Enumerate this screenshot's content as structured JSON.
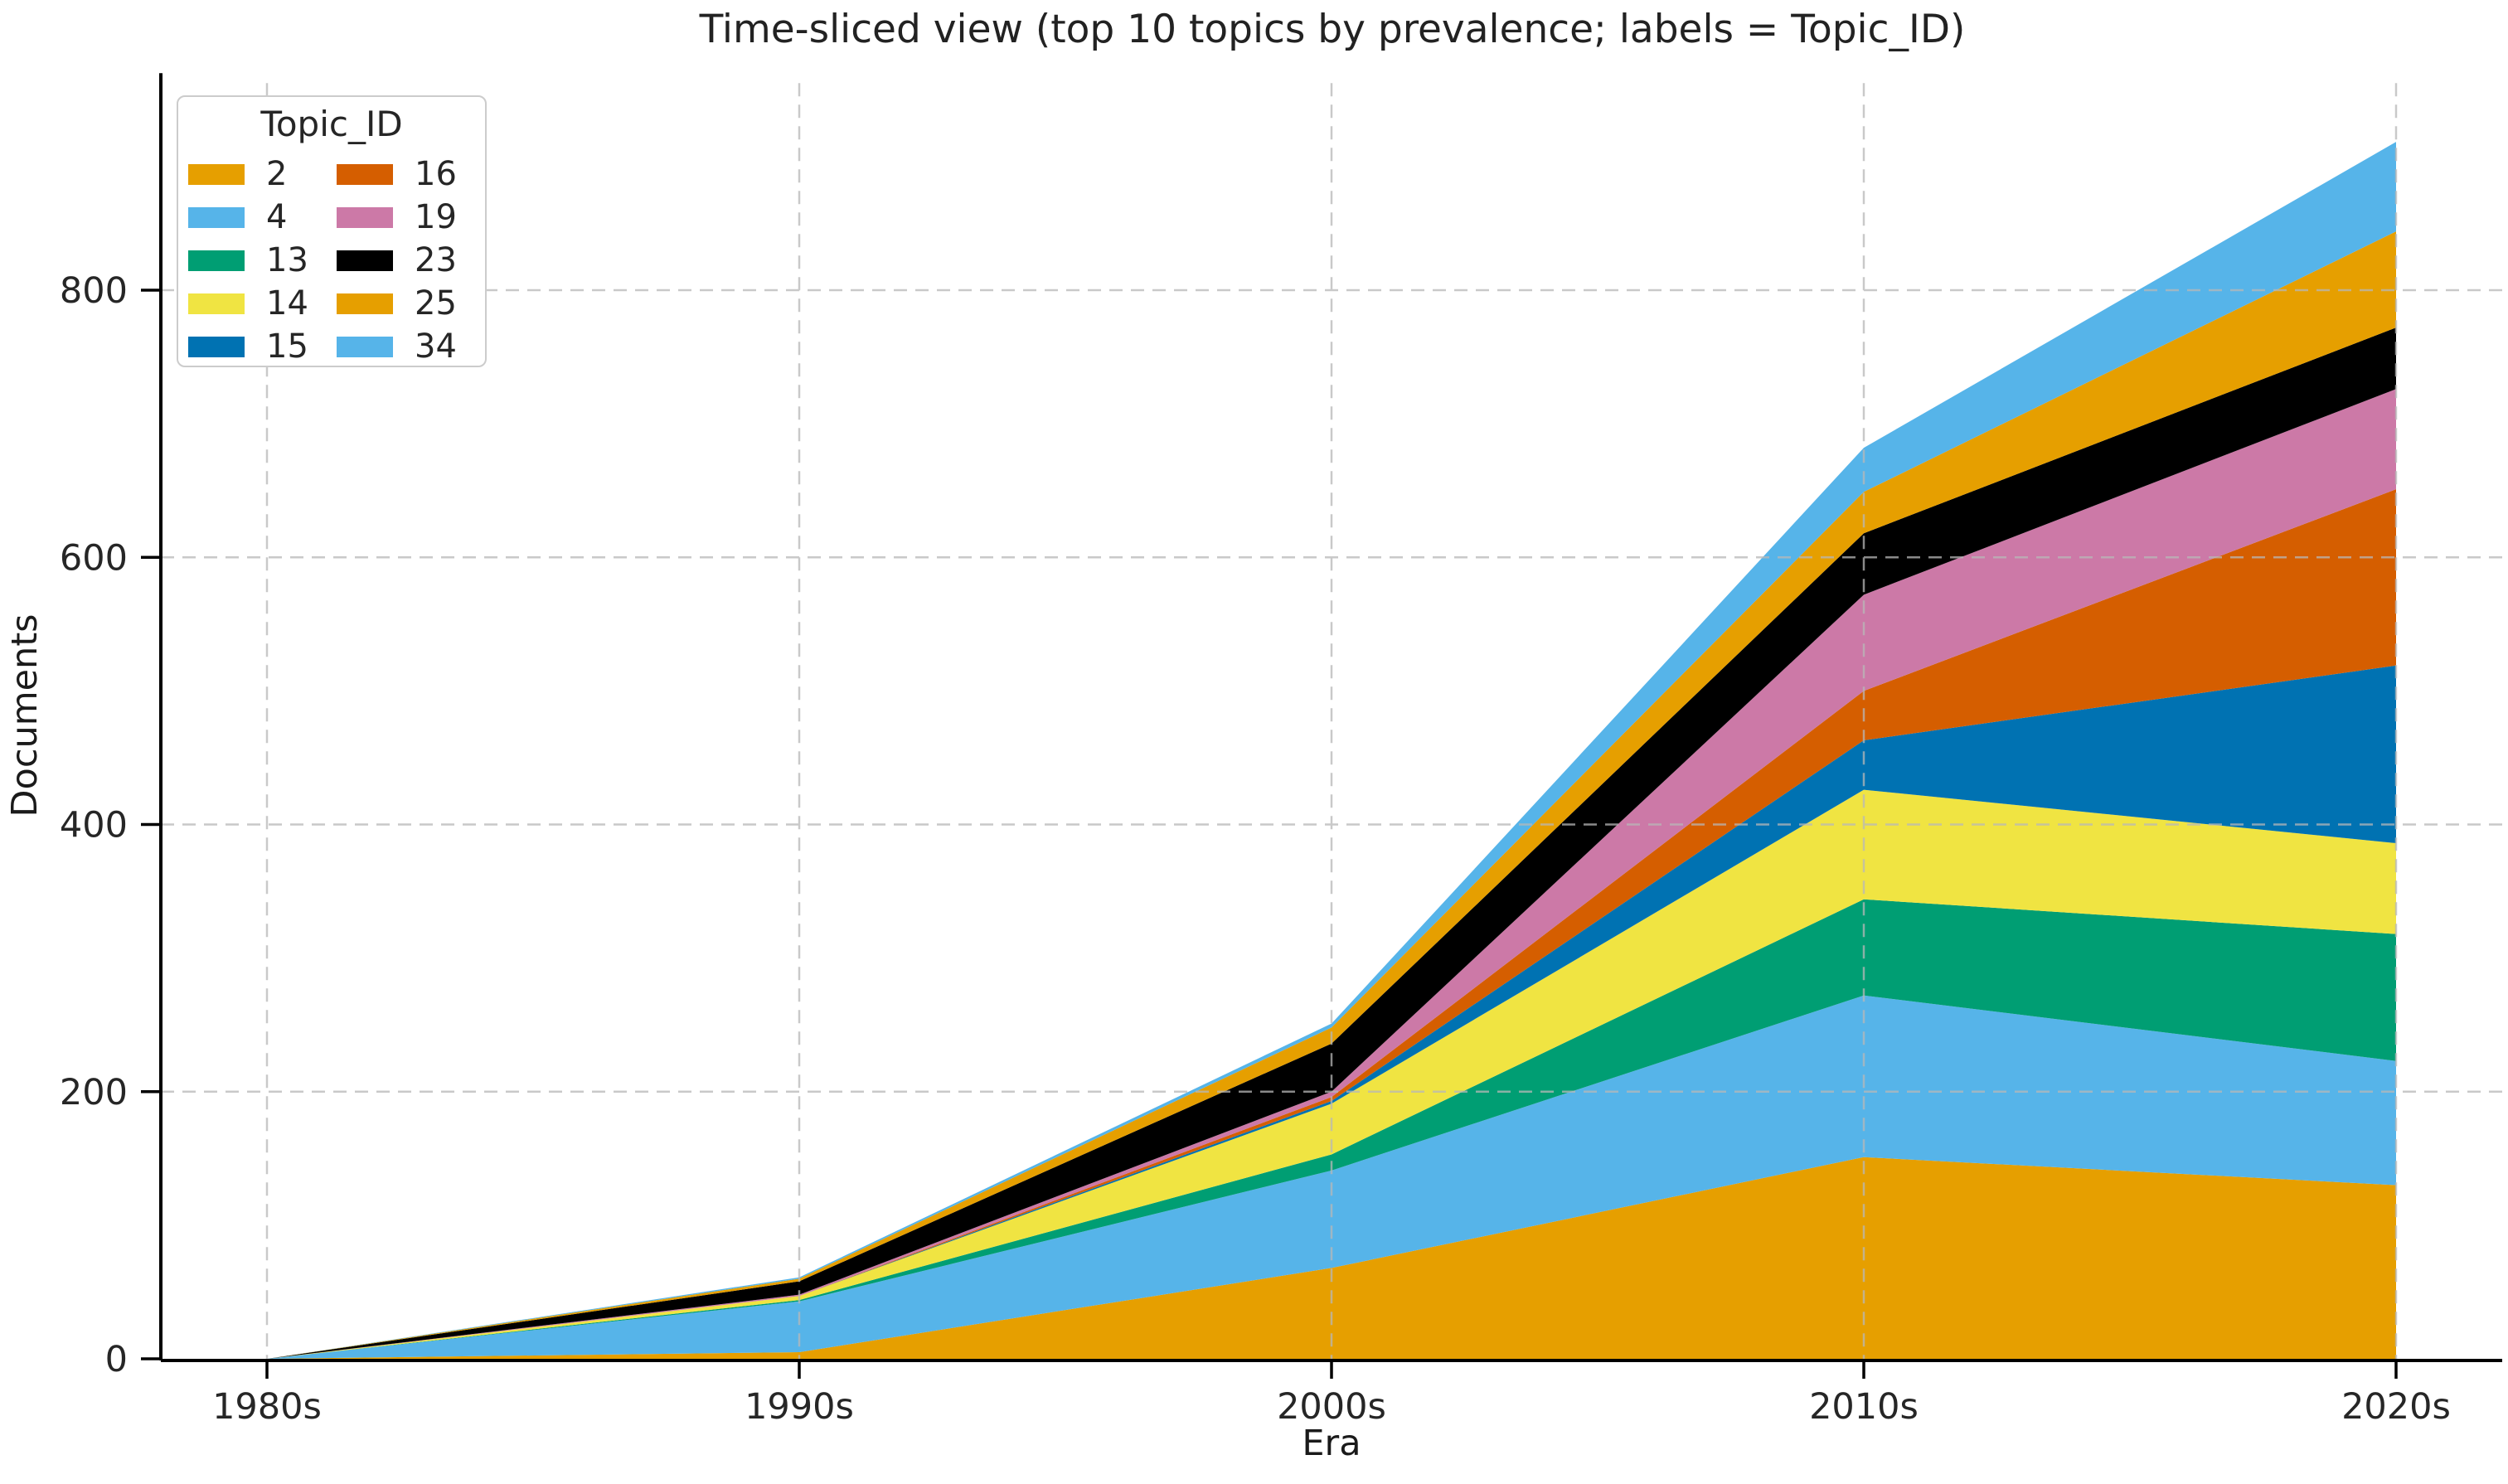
{
  "chart_data": {
    "type": "area",
    "stacked": true,
    "title": "Time-sliced view (top 10 topics by prevalence; labels = Topic_ID)",
    "xlabel": "Era",
    "ylabel": "Documents",
    "legend_title": "Topic_ID",
    "legend_position": "upper left",
    "grid": "dashed both axes",
    "categories": [
      "1980s",
      "1990s",
      "2000s",
      "2010s",
      "2020s"
    ],
    "yticks": [
      0,
      200,
      400,
      600,
      800
    ],
    "ylim": [
      0,
      955
    ],
    "series": [
      {
        "name": "2",
        "color": "#E69F00",
        "values": [
          0,
          5,
          68,
          151,
          130
        ]
      },
      {
        "name": "4",
        "color": "#56B4E9",
        "values": [
          0,
          38,
          73,
          121,
          93
        ]
      },
      {
        "name": "13",
        "color": "#009E73",
        "values": [
          0,
          1,
          12,
          72,
          95
        ]
      },
      {
        "name": "14",
        "color": "#F0E442",
        "values": [
          0,
          3,
          38,
          82,
          68
        ]
      },
      {
        "name": "15",
        "color": "#0072B2",
        "values": [
          0,
          0,
          2,
          37,
          133
        ]
      },
      {
        "name": "16",
        "color": "#D55E00",
        "values": [
          0,
          0,
          3,
          37,
          132
        ]
      },
      {
        "name": "19",
        "color": "#CC79A7",
        "values": [
          0,
          1,
          4,
          72,
          75
        ]
      },
      {
        "name": "23",
        "color": "#000000",
        "values": [
          0,
          10,
          36,
          46,
          46
        ]
      },
      {
        "name": "25",
        "color": "#E69F00",
        "values": [
          0,
          2,
          12,
          31,
          72
        ]
      },
      {
        "name": "34",
        "color": "#56B4E9",
        "values": [
          0,
          1,
          3,
          33,
          67
        ]
      }
    ],
    "totals_by_era": [
      0,
      61,
      251,
      682,
      911
    ],
    "text_color": "#262626",
    "grid_color": "#b8b8b8",
    "spine_color": "#000000"
  }
}
